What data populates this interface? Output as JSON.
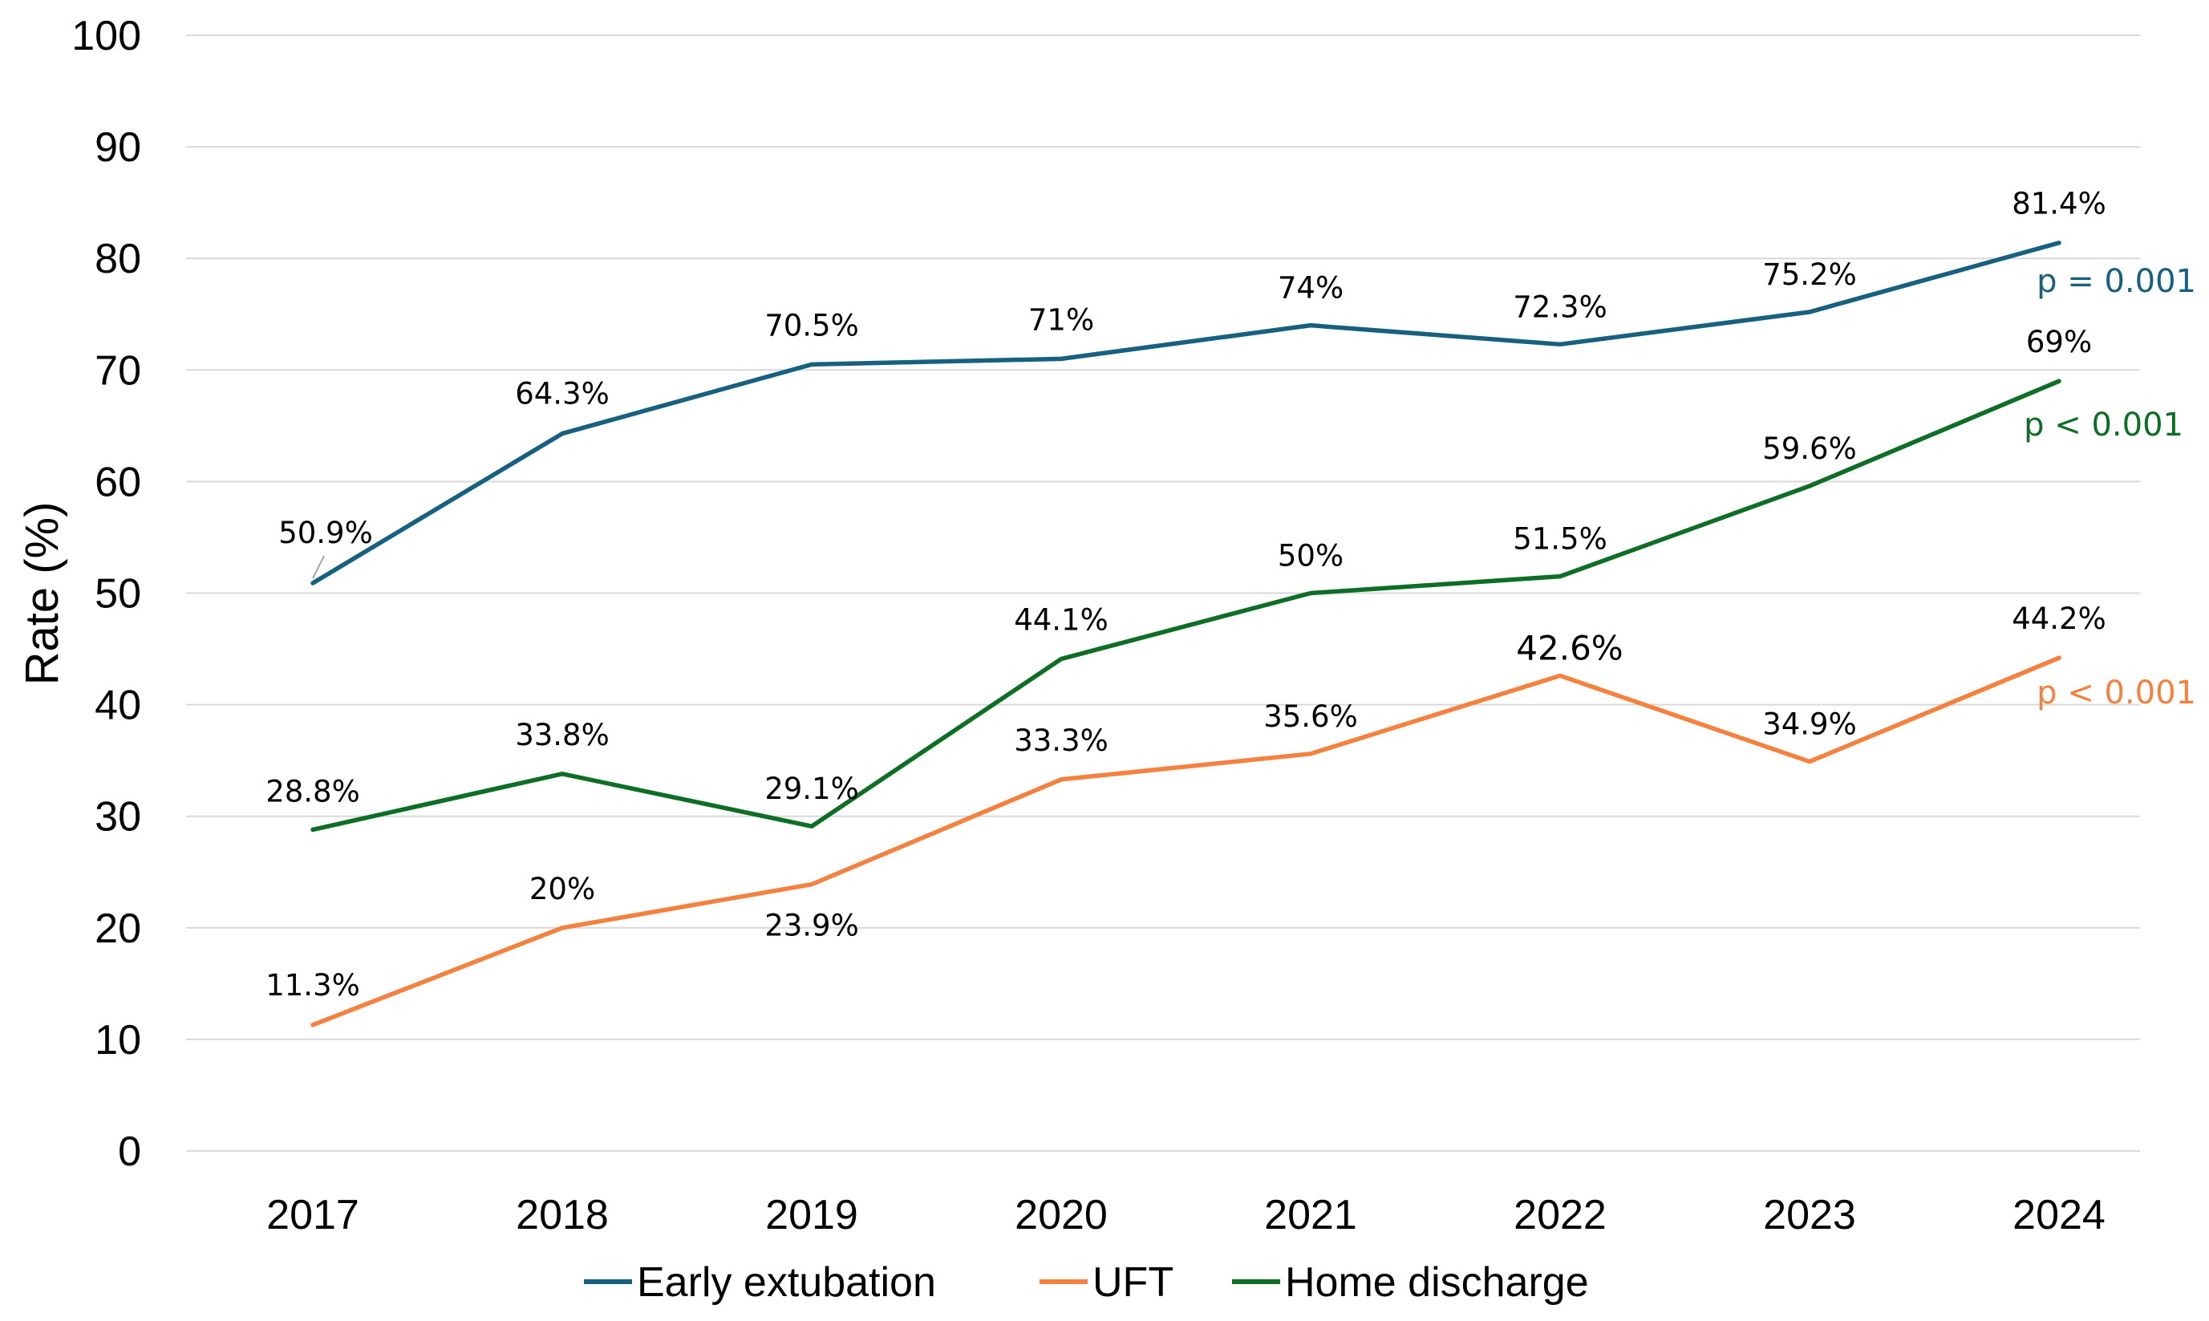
{
  "chart_data": {
    "type": "line",
    "title": "",
    "xlabel": "",
    "ylabel": "Rate (%)",
    "ylim": [
      0,
      100
    ],
    "yticks": [
      0,
      10,
      20,
      30,
      40,
      50,
      60,
      70,
      80,
      90,
      100
    ],
    "grid": true,
    "legend_position": "bottom",
    "categories": [
      "2017",
      "2018",
      "2019",
      "2020",
      "2021",
      "2022",
      "2023",
      "2024"
    ],
    "series": [
      {
        "name": "Early extubation",
        "color": "#17607f",
        "values": [
          50.9,
          64.3,
          70.5,
          71,
          74,
          72.3,
          75.2,
          81.4
        ],
        "labels": [
          "50.9%",
          "64.3%",
          "70.5%",
          "71%",
          "74%",
          "72.3%",
          "75.2%",
          "81.4%"
        ],
        "p_value": "p = 0.001"
      },
      {
        "name": "UFT",
        "color": "#f4813f",
        "values": [
          11.3,
          20,
          23.9,
          33.3,
          35.6,
          42.6,
          34.9,
          44.2
        ],
        "labels": [
          "11.3%",
          "20%",
          "23.9%",
          "33.3%",
          "35.6%",
          "42.6%",
          "34.9%",
          "44.2%"
        ],
        "p_value": "p < 0.001"
      },
      {
        "name": "Home discharge",
        "color": "#0e6e25",
        "values": [
          28.8,
          33.8,
          29.1,
          44.1,
          50,
          51.5,
          59.6,
          69
        ],
        "labels": [
          "28.8%",
          "33.8%",
          "29.1%",
          "44.1%",
          "50%",
          "51.5%",
          "59.6%",
          "69%"
        ],
        "p_value": "p < 0.001"
      }
    ],
    "legend": [
      "Early extubation",
      "UFT",
      "Home discharge"
    ]
  }
}
